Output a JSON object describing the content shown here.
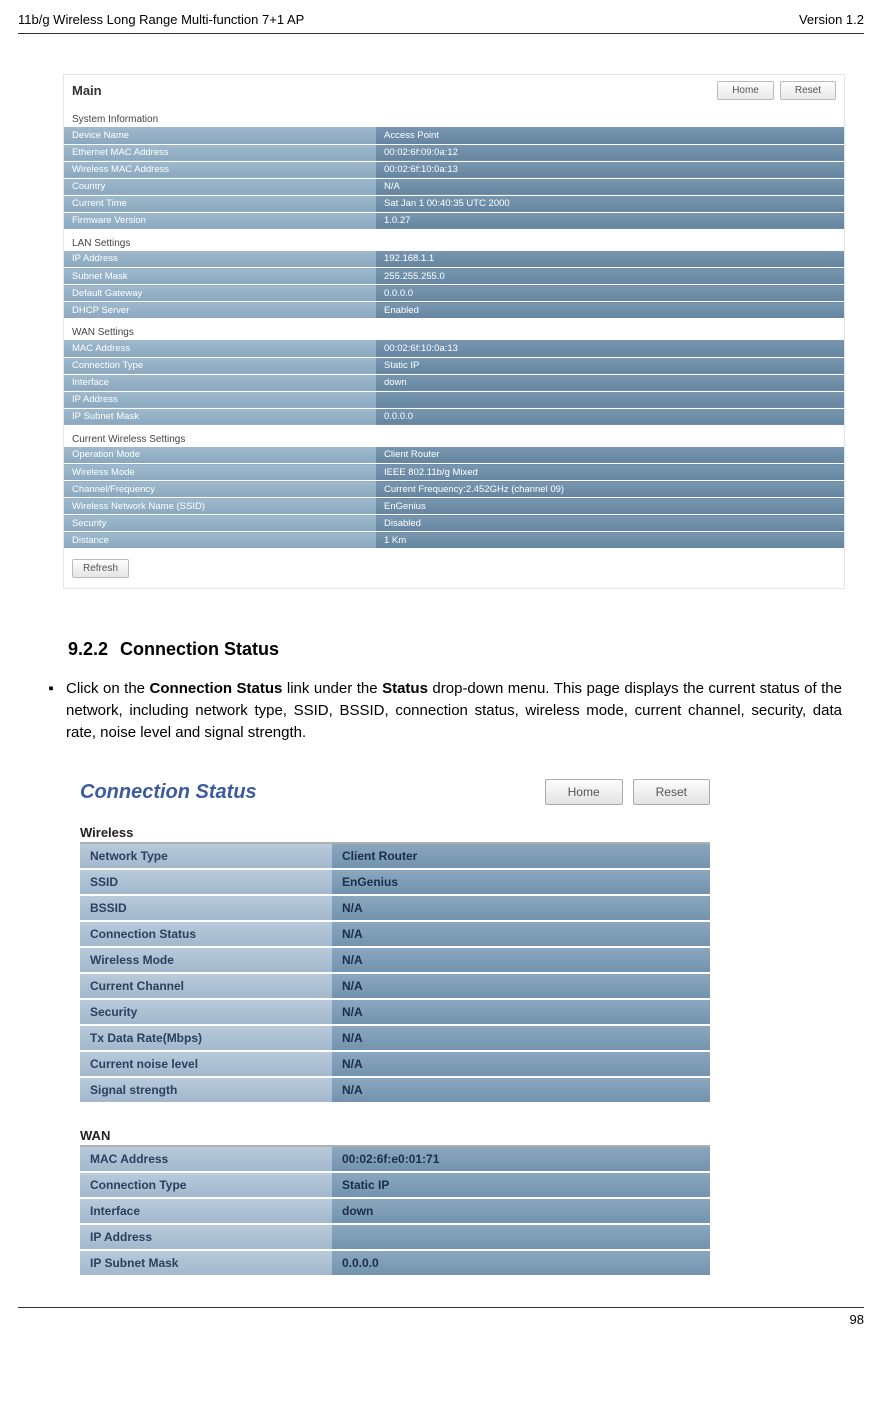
{
  "header": {
    "left": "11b/g Wireless Long Range Multi-function 7+1 AP",
    "right": "Version 1.2"
  },
  "footer": {
    "page": "98"
  },
  "ss1": {
    "title": "Main",
    "btn_home": "Home",
    "btn_reset": "Reset",
    "sec_sys": "System Information",
    "sys_rows": [
      [
        "Device Name",
        "Access Point"
      ],
      [
        "Ethernet MAC Address",
        "00:02:6f:09:0a:12"
      ],
      [
        "Wireless MAC Address",
        "00:02:6f:10:0a:13"
      ],
      [
        "Country",
        "N/A"
      ],
      [
        "Current Time",
        "Sat Jan 1 00:40:35 UTC 2000"
      ],
      [
        "Firmware Version",
        "1.0.27"
      ]
    ],
    "sec_lan": "LAN Settings",
    "lan_rows": [
      [
        "IP Address",
        "192.168.1.1"
      ],
      [
        "Subnet Mask",
        "255.255.255.0"
      ],
      [
        "Default Gateway",
        "0.0.0.0"
      ],
      [
        "DHCP Server",
        "Enabled"
      ]
    ],
    "sec_wan": "WAN Settings",
    "wan_rows": [
      [
        "MAC Address",
        "00:02:6f:10:0a:13"
      ],
      [
        "Connection Type",
        "Static IP"
      ],
      [
        "Interface",
        "down"
      ],
      [
        "IP Address",
        ""
      ],
      [
        "IP Subnet Mask",
        "0.0.0.0"
      ]
    ],
    "sec_wless": "Current Wireless Settings",
    "wless_rows": [
      [
        "Operation Mode",
        "Client Router"
      ],
      [
        "Wireless Mode",
        "IEEE 802.11b/g Mixed"
      ],
      [
        "Channel/Frequency",
        "Current Frequency:2.452GHz (channel 09)"
      ],
      [
        "Wireless Network Name (SSID)",
        "EnGenius"
      ],
      [
        "Security",
        "Disabled"
      ],
      [
        "Distance",
        "1 Km"
      ]
    ],
    "refresh": "Refresh"
  },
  "section": {
    "num": "9.2.2",
    "title": "Connection Status",
    "para_pre": "Click on the ",
    "para_b1": "Connection Status",
    "para_mid1": " link under the ",
    "para_b2": "Status",
    "para_post": " drop-down menu. This page displays the current status of the network, including network type, SSID,  BSSID, connection status, wireless mode, current channel, security, data rate, noise level and signal strength."
  },
  "ss2": {
    "title": "Connection Status",
    "btn_home": "Home",
    "btn_reset": "Reset",
    "sec_wless": "Wireless",
    "wless_rows": [
      [
        "Network Type",
        "Client Router"
      ],
      [
        "SSID",
        "EnGenius"
      ],
      [
        "BSSID",
        "N/A"
      ],
      [
        "Connection Status",
        "N/A"
      ],
      [
        "Wireless Mode",
        "N/A"
      ],
      [
        "Current Channel",
        "N/A"
      ],
      [
        "Security",
        "N/A"
      ],
      [
        "Tx Data Rate(Mbps)",
        "N/A"
      ],
      [
        "Current noise level",
        "N/A"
      ],
      [
        "Signal strength",
        "N/A"
      ]
    ],
    "sec_wan": "WAN",
    "wan_rows": [
      [
        "MAC Address",
        "00:02:6f:e0:01:71"
      ],
      [
        "Connection Type",
        "Static IP"
      ],
      [
        "Interface",
        "down"
      ],
      [
        "IP Address",
        ""
      ],
      [
        "IP Subnet Mask",
        "0.0.0.0"
      ]
    ]
  }
}
